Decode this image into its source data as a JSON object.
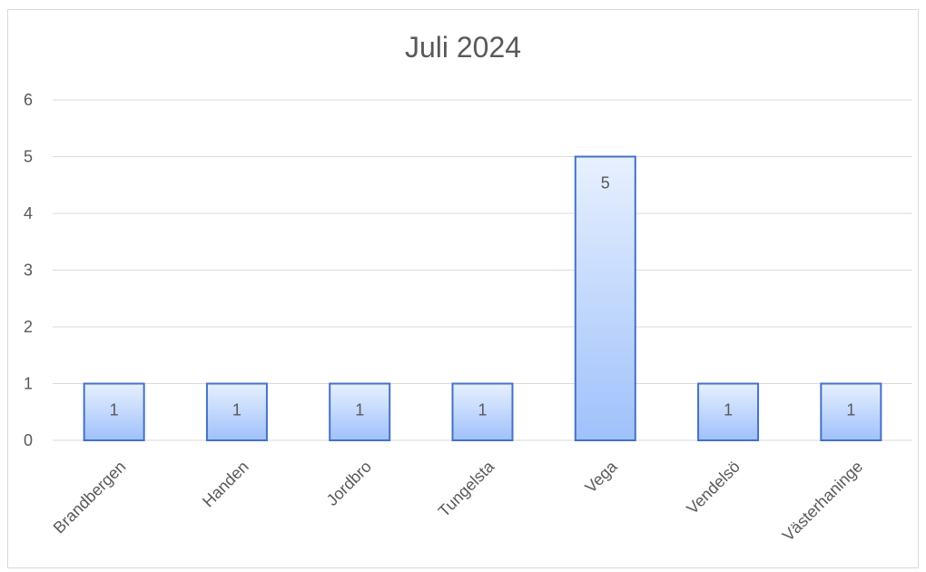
{
  "chart_data": {
    "type": "bar",
    "title": "Juli 2024",
    "xlabel": "",
    "ylabel": "",
    "categories": [
      "Brandbergen",
      "Handen",
      "Jordbro",
      "Tungelsta",
      "Vega",
      "Vendelsö",
      "Västerhaninge"
    ],
    "values": [
      1,
      1,
      1,
      1,
      5,
      1,
      1
    ],
    "ylim": [
      0,
      6
    ],
    "yticks": [
      0,
      1,
      2,
      3,
      4,
      5,
      6
    ],
    "grid": true,
    "legend": "none",
    "data_labels": true,
    "colors": {
      "bar_top": "#e7f0fe",
      "bar_bottom": "#9fc1fb",
      "bar_border": "#4472c4",
      "grid": "#d9d9d9",
      "text": "#595959"
    }
  }
}
